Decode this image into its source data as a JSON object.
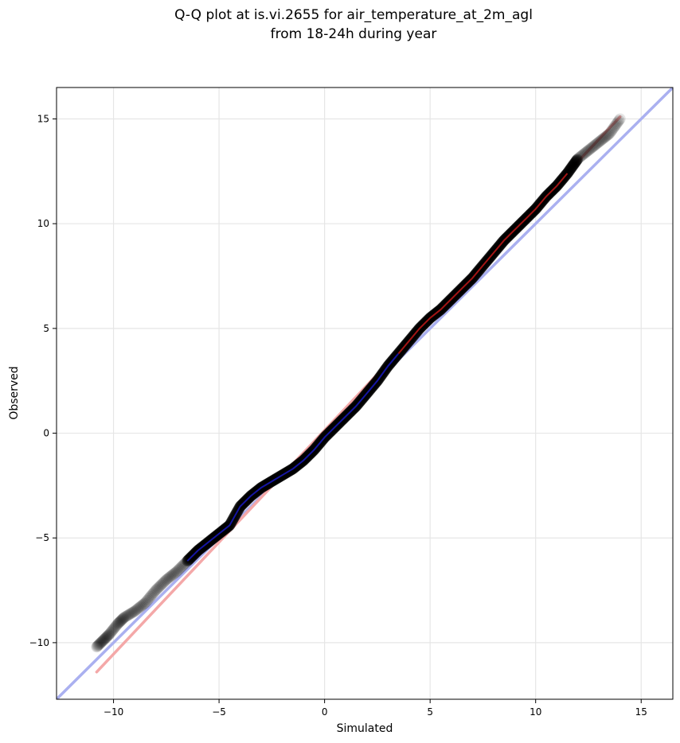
{
  "chart_data": {
    "type": "scatter",
    "title_line1": "Q-Q plot at is.vi.2655 for air_temperature_at_2m_agl",
    "title_line2": "from 18-24h during year",
    "xlabel": "Simulated",
    "ylabel": "Observed",
    "xlim": [
      -12.7,
      16.5
    ],
    "ylim": [
      -12.7,
      16.5
    ],
    "xticks": [
      -10,
      -5,
      0,
      5,
      10,
      15
    ],
    "yticks": [
      -10,
      -5,
      0,
      5,
      10,
      15
    ],
    "tick_labels": [
      "−10",
      "−5",
      "0",
      "5",
      "10",
      "15"
    ],
    "grid": true,
    "quantile_curve": [
      [
        -10.8,
        -10.2
      ],
      [
        -10.5,
        -9.9
      ],
      [
        -10.2,
        -9.6
      ],
      [
        -9.8,
        -9.1
      ],
      [
        -9.5,
        -8.8
      ],
      [
        -9.0,
        -8.5
      ],
      [
        -8.5,
        -8.1
      ],
      [
        -8.0,
        -7.5
      ],
      [
        -7.5,
        -7.0
      ],
      [
        -7.0,
        -6.6
      ],
      [
        -6.5,
        -6.1
      ],
      [
        -6.0,
        -5.6
      ],
      [
        -5.5,
        -5.2
      ],
      [
        -5.0,
        -4.8
      ],
      [
        -4.5,
        -4.4
      ],
      [
        -4.0,
        -3.5
      ],
      [
        -3.5,
        -3.0
      ],
      [
        -3.0,
        -2.6
      ],
      [
        -2.5,
        -2.3
      ],
      [
        -2.0,
        -2.0
      ],
      [
        -1.5,
        -1.7
      ],
      [
        -1.0,
        -1.3
      ],
      [
        -0.5,
        -0.8
      ],
      [
        0.0,
        -0.2
      ],
      [
        0.5,
        0.3
      ],
      [
        1.0,
        0.8
      ],
      [
        1.5,
        1.3
      ],
      [
        2.0,
        1.9
      ],
      [
        2.5,
        2.5
      ],
      [
        3.0,
        3.2
      ],
      [
        3.5,
        3.8
      ],
      [
        4.0,
        4.4
      ],
      [
        4.5,
        5.0
      ],
      [
        5.0,
        5.5
      ],
      [
        5.5,
        5.9
      ],
      [
        6.0,
        6.4
      ],
      [
        6.5,
        6.9
      ],
      [
        7.0,
        7.4
      ],
      [
        7.5,
        8.0
      ],
      [
        8.0,
        8.6
      ],
      [
        8.5,
        9.2
      ],
      [
        9.0,
        9.7
      ],
      [
        9.5,
        10.2
      ],
      [
        10.0,
        10.7
      ],
      [
        10.5,
        11.3
      ],
      [
        11.0,
        11.8
      ],
      [
        11.5,
        12.4
      ],
      [
        12.0,
        13.1
      ],
      [
        12.5,
        13.5
      ],
      [
        13.0,
        13.9
      ],
      [
        13.5,
        14.3
      ],
      [
        14.0,
        15.0
      ]
    ],
    "reference_lines": [
      {
        "color": "#aab0f0",
        "from": [
          -12.7,
          -12.7
        ],
        "to": [
          16.5,
          16.5
        ]
      },
      {
        "color": "#f4a8a8",
        "from": [
          -10.8,
          -11.4
        ],
        "to": [
          14.0,
          15.1
        ]
      }
    ],
    "marker_color": "#000000",
    "inner_line_colors": [
      "#1a1acc",
      "#cc1a1a"
    ]
  }
}
